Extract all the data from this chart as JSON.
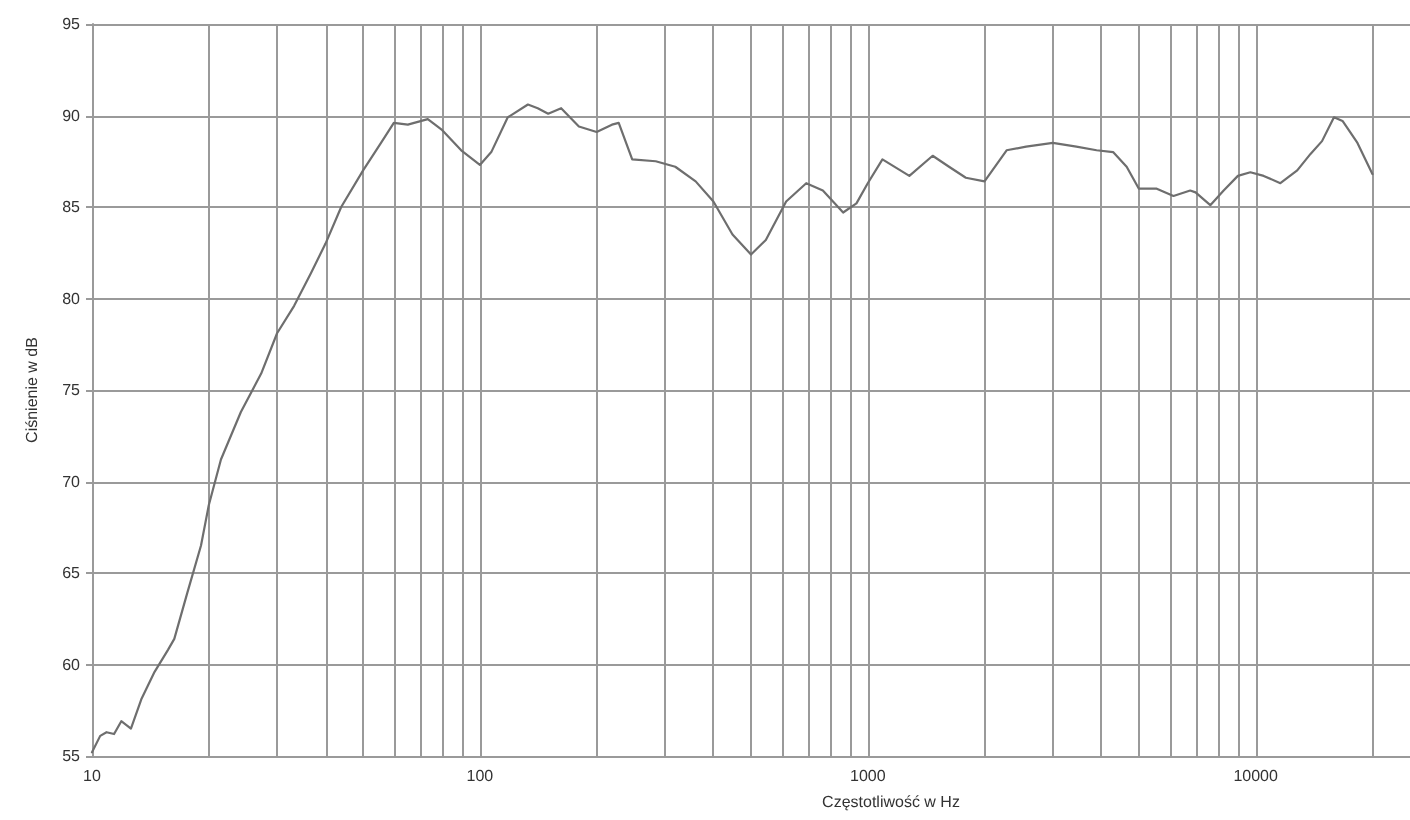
{
  "chart_data": {
    "type": "line",
    "xlabel": "Częstotliwość w Hz",
    "ylabel": "Ciśnienie w dB",
    "log": "x",
    "grid": true,
    "color": "#6e6e6e",
    "x": [
      10,
      10.5,
      10.9,
      11.4,
      11.9,
      12.6,
      13.4,
      14.5,
      15.7,
      16.3,
      17.6,
      19.1,
      20,
      21.5,
      24.2,
      27.3,
      30,
      33.2,
      36.7,
      40,
      43.9,
      50,
      55.6,
      60,
      65.2,
      73.4,
      80,
      89.5,
      100,
      107,
      118,
      133,
      141,
      150,
      162,
      180,
      200,
      219,
      228,
      247,
      284,
      319,
      360,
      400,
      448,
      500,
      546,
      616,
      694,
      766,
      864,
      935,
      1000,
      1091,
      1280,
      1470,
      1620,
      1790,
      2000,
      2280,
      2560,
      3000,
      3450,
      3890,
      4290,
      4650,
      5000,
      5560,
      6140,
      6780,
      7000,
      7640,
      8270,
      9000,
      9690,
      10490,
      11580,
      12800,
      13850,
      14830,
      15920,
      16750,
      18300,
      20000
    ],
    "values": [
      55.2,
      56.1,
      56.3,
      56.2,
      56.9,
      56.5,
      58.1,
      59.6,
      60.8,
      61.4,
      63.9,
      66.5,
      68.7,
      71.2,
      73.8,
      75.9,
      78.1,
      79.6,
      81.4,
      83.0,
      85.0,
      87.0,
      88.5,
      89.6,
      89.5,
      89.8,
      89.2,
      88.1,
      87.3,
      88.0,
      89.9,
      90.6,
      90.4,
      90.1,
      90.4,
      89.4,
      89.1,
      89.5,
      89.6,
      87.6,
      87.5,
      87.2,
      86.4,
      85.3,
      83.5,
      82.4,
      83.2,
      85.3,
      86.3,
      85.9,
      84.7,
      85.2,
      86.3,
      87.6,
      86.7,
      87.8,
      87.2,
      86.6,
      86.4,
      88.1,
      88.3,
      88.5,
      88.3,
      88.1,
      88.0,
      87.2,
      86.0,
      86.0,
      85.6,
      85.9,
      85.8,
      85.1,
      85.9,
      86.7,
      86.9,
      86.7,
      86.3,
      87.0,
      87.9,
      88.6,
      89.9,
      89.7,
      88.5,
      86.8
    ],
    "xlim": [
      10,
      25000
    ],
    "xticks": [
      10,
      {
        "value": 20,
        "label": null
      },
      {
        "value": 30,
        "label": null
      },
      {
        "value": 40,
        "label": null
      },
      {
        "value": 50,
        "label": null
      },
      {
        "value": 60,
        "label": null
      },
      {
        "value": 70,
        "label": null
      },
      {
        "value": 80,
        "label": null
      },
      {
        "value": 90,
        "label": null
      },
      100,
      {
        "value": 200,
        "label": null
      },
      {
        "value": 300,
        "label": null
      },
      {
        "value": 400,
        "label": null
      },
      {
        "value": 500,
        "label": null
      },
      {
        "value": 600,
        "label": null
      },
      {
        "value": 700,
        "label": null
      },
      {
        "value": 800,
        "label": null
      },
      {
        "value": 900,
        "label": null
      },
      1000,
      {
        "value": 2000,
        "label": null
      },
      {
        "value": 3000,
        "label": null
      },
      {
        "value": 4000,
        "label": null
      },
      {
        "value": 5000,
        "label": null
      },
      {
        "value": 6000,
        "label": null
      },
      {
        "value": 7000,
        "label": null
      },
      {
        "value": 8000,
        "label": null
      },
      {
        "value": 9000,
        "label": null
      },
      10000,
      {
        "value": 20000,
        "label": null
      }
    ],
    "ylim": [
      55,
      95
    ],
    "yticks": [
      55,
      60,
      65,
      70,
      75,
      80,
      85,
      90,
      95
    ]
  }
}
